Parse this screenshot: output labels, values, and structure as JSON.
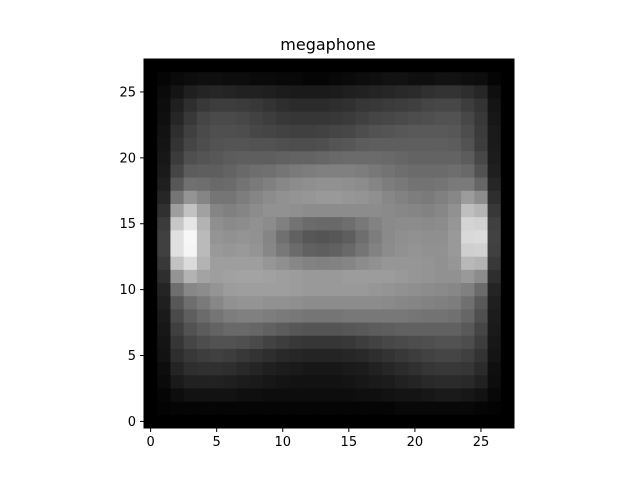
{
  "chart_data": {
    "type": "heatmap",
    "title": "megaphone",
    "xlabel": "",
    "ylabel": "",
    "colormap": "gray",
    "value_range": [
      0,
      1
    ],
    "grid": false,
    "legend": "none",
    "xlim": [
      -0.5,
      27.5
    ],
    "ylim": [
      27.5,
      -0.5
    ],
    "x_ticks": [
      0,
      5,
      10,
      15,
      20,
      25
    ],
    "x_tick_labels": [
      "0",
      "5",
      "10",
      "15",
      "20",
      "25"
    ],
    "y_ticks": [
      0,
      5,
      10,
      15,
      20,
      25
    ],
    "y_tick_labels": [
      "0",
      "5",
      "10",
      "15",
      "20",
      "25"
    ],
    "rows": 28,
    "cols": 28,
    "values": [
      [
        0.0,
        0.0,
        0.0,
        0.0,
        0.0,
        0.0,
        0.0,
        0.0,
        0.0,
        0.0,
        0.0,
        0.0,
        0.0,
        0.0,
        0.0,
        0.0,
        0.0,
        0.0,
        0.0,
        0.0,
        0.0,
        0.0,
        0.0,
        0.0,
        0.0,
        0.0,
        0.0,
        0.0
      ],
      [
        0.0,
        0.02,
        0.04,
        0.05,
        0.06,
        0.06,
        0.05,
        0.05,
        0.04,
        0.04,
        0.03,
        0.03,
        0.02,
        0.02,
        0.03,
        0.04,
        0.05,
        0.06,
        0.07,
        0.07,
        0.06,
        0.06,
        0.07,
        0.07,
        0.06,
        0.05,
        0.02,
        0.0
      ],
      [
        0.0,
        0.04,
        0.08,
        0.12,
        0.14,
        0.15,
        0.14,
        0.13,
        0.13,
        0.12,
        0.11,
        0.1,
        0.1,
        0.1,
        0.11,
        0.12,
        0.13,
        0.14,
        0.15,
        0.16,
        0.17,
        0.19,
        0.2,
        0.2,
        0.18,
        0.15,
        0.06,
        0.0
      ],
      [
        0.0,
        0.05,
        0.12,
        0.18,
        0.22,
        0.24,
        0.24,
        0.23,
        0.22,
        0.2,
        0.18,
        0.17,
        0.17,
        0.17,
        0.18,
        0.19,
        0.21,
        0.22,
        0.23,
        0.24,
        0.25,
        0.27,
        0.28,
        0.28,
        0.24,
        0.2,
        0.08,
        0.0
      ],
      [
        0.0,
        0.06,
        0.15,
        0.22,
        0.27,
        0.29,
        0.29,
        0.28,
        0.26,
        0.24,
        0.22,
        0.21,
        0.21,
        0.21,
        0.22,
        0.23,
        0.25,
        0.27,
        0.28,
        0.29,
        0.3,
        0.31,
        0.32,
        0.32,
        0.28,
        0.22,
        0.09,
        0.0
      ],
      [
        0.0,
        0.07,
        0.18,
        0.25,
        0.29,
        0.31,
        0.31,
        0.3,
        0.28,
        0.27,
        0.26,
        0.25,
        0.25,
        0.26,
        0.27,
        0.28,
        0.3,
        0.32,
        0.33,
        0.34,
        0.35,
        0.35,
        0.35,
        0.34,
        0.3,
        0.23,
        0.1,
        0.0
      ],
      [
        0.0,
        0.08,
        0.2,
        0.27,
        0.3,
        0.32,
        0.33,
        0.33,
        0.32,
        0.32,
        0.31,
        0.3,
        0.3,
        0.31,
        0.33,
        0.34,
        0.36,
        0.37,
        0.37,
        0.37,
        0.37,
        0.37,
        0.37,
        0.36,
        0.32,
        0.24,
        0.1,
        0.0
      ],
      [
        0.0,
        0.09,
        0.23,
        0.31,
        0.33,
        0.34,
        0.36,
        0.37,
        0.37,
        0.37,
        0.38,
        0.39,
        0.39,
        0.4,
        0.41,
        0.42,
        0.42,
        0.42,
        0.41,
        0.4,
        0.39,
        0.39,
        0.39,
        0.39,
        0.36,
        0.28,
        0.11,
        0.0
      ],
      [
        0.0,
        0.1,
        0.27,
        0.36,
        0.37,
        0.37,
        0.39,
        0.41,
        0.43,
        0.44,
        0.46,
        0.48,
        0.49,
        0.5,
        0.5,
        0.5,
        0.49,
        0.47,
        0.45,
        0.43,
        0.42,
        0.42,
        0.42,
        0.43,
        0.41,
        0.32,
        0.12,
        0.0
      ],
      [
        0.0,
        0.12,
        0.34,
        0.44,
        0.43,
        0.41,
        0.42,
        0.45,
        0.48,
        0.5,
        0.53,
        0.55,
        0.56,
        0.57,
        0.57,
        0.56,
        0.55,
        0.52,
        0.49,
        0.47,
        0.45,
        0.45,
        0.46,
        0.48,
        0.48,
        0.4,
        0.15,
        0.0
      ],
      [
        0.0,
        0.15,
        0.46,
        0.58,
        0.52,
        0.46,
        0.46,
        0.49,
        0.52,
        0.55,
        0.57,
        0.58,
        0.59,
        0.6,
        0.6,
        0.59,
        0.58,
        0.56,
        0.53,
        0.51,
        0.49,
        0.48,
        0.5,
        0.53,
        0.61,
        0.55,
        0.18,
        0.0
      ],
      [
        0.0,
        0.19,
        0.62,
        0.76,
        0.63,
        0.52,
        0.5,
        0.52,
        0.55,
        0.57,
        0.57,
        0.56,
        0.55,
        0.55,
        0.55,
        0.55,
        0.55,
        0.55,
        0.54,
        0.53,
        0.52,
        0.51,
        0.53,
        0.57,
        0.75,
        0.71,
        0.22,
        0.0
      ],
      [
        0.0,
        0.23,
        0.78,
        0.9,
        0.7,
        0.56,
        0.54,
        0.55,
        0.57,
        0.55,
        0.5,
        0.45,
        0.42,
        0.41,
        0.41,
        0.43,
        0.47,
        0.51,
        0.54,
        0.55,
        0.55,
        0.54,
        0.55,
        0.59,
        0.83,
        0.82,
        0.25,
        0.0
      ],
      [
        0.0,
        0.25,
        0.88,
        0.97,
        0.73,
        0.58,
        0.57,
        0.58,
        0.57,
        0.52,
        0.44,
        0.38,
        0.34,
        0.33,
        0.34,
        0.37,
        0.43,
        0.49,
        0.54,
        0.56,
        0.57,
        0.56,
        0.56,
        0.6,
        0.85,
        0.86,
        0.26,
        0.0
      ],
      [
        0.0,
        0.25,
        0.88,
        0.96,
        0.73,
        0.6,
        0.59,
        0.6,
        0.58,
        0.53,
        0.47,
        0.42,
        0.38,
        0.37,
        0.38,
        0.41,
        0.46,
        0.51,
        0.55,
        0.57,
        0.58,
        0.57,
        0.57,
        0.6,
        0.81,
        0.82,
        0.25,
        0.0
      ],
      [
        0.0,
        0.22,
        0.76,
        0.86,
        0.7,
        0.62,
        0.62,
        0.62,
        0.62,
        0.59,
        0.56,
        0.53,
        0.51,
        0.5,
        0.51,
        0.52,
        0.55,
        0.57,
        0.59,
        0.59,
        0.59,
        0.58,
        0.57,
        0.59,
        0.72,
        0.7,
        0.22,
        0.0
      ],
      [
        0.0,
        0.18,
        0.58,
        0.7,
        0.64,
        0.62,
        0.63,
        0.64,
        0.64,
        0.63,
        0.62,
        0.61,
        0.6,
        0.6,
        0.6,
        0.61,
        0.61,
        0.61,
        0.61,
        0.6,
        0.59,
        0.58,
        0.57,
        0.57,
        0.6,
        0.55,
        0.18,
        0.0
      ],
      [
        0.0,
        0.14,
        0.43,
        0.53,
        0.55,
        0.58,
        0.61,
        0.62,
        0.62,
        0.62,
        0.62,
        0.61,
        0.6,
        0.6,
        0.6,
        0.6,
        0.6,
        0.59,
        0.58,
        0.57,
        0.56,
        0.55,
        0.54,
        0.53,
        0.5,
        0.42,
        0.14,
        0.0
      ],
      [
        0.0,
        0.12,
        0.34,
        0.43,
        0.48,
        0.53,
        0.57,
        0.58,
        0.58,
        0.57,
        0.57,
        0.56,
        0.55,
        0.55,
        0.55,
        0.55,
        0.55,
        0.55,
        0.54,
        0.53,
        0.52,
        0.51,
        0.5,
        0.49,
        0.44,
        0.35,
        0.12,
        0.0
      ],
      [
        0.0,
        0.1,
        0.29,
        0.37,
        0.42,
        0.46,
        0.49,
        0.5,
        0.5,
        0.49,
        0.48,
        0.47,
        0.46,
        0.46,
        0.46,
        0.47,
        0.47,
        0.47,
        0.47,
        0.47,
        0.46,
        0.45,
        0.45,
        0.44,
        0.4,
        0.31,
        0.11,
        0.0
      ],
      [
        0.0,
        0.09,
        0.25,
        0.32,
        0.36,
        0.39,
        0.41,
        0.41,
        0.4,
        0.38,
        0.36,
        0.34,
        0.33,
        0.33,
        0.33,
        0.34,
        0.35,
        0.36,
        0.37,
        0.38,
        0.38,
        0.38,
        0.38,
        0.38,
        0.35,
        0.27,
        0.1,
        0.0
      ],
      [
        0.0,
        0.08,
        0.21,
        0.27,
        0.3,
        0.32,
        0.32,
        0.31,
        0.29,
        0.26,
        0.24,
        0.22,
        0.21,
        0.21,
        0.21,
        0.22,
        0.24,
        0.26,
        0.28,
        0.29,
        0.3,
        0.31,
        0.32,
        0.32,
        0.3,
        0.24,
        0.09,
        0.0
      ],
      [
        0.0,
        0.07,
        0.18,
        0.22,
        0.24,
        0.25,
        0.24,
        0.22,
        0.2,
        0.18,
        0.16,
        0.15,
        0.14,
        0.14,
        0.14,
        0.15,
        0.16,
        0.18,
        0.2,
        0.22,
        0.24,
        0.26,
        0.27,
        0.27,
        0.25,
        0.2,
        0.08,
        0.0
      ],
      [
        0.0,
        0.05,
        0.14,
        0.18,
        0.19,
        0.19,
        0.18,
        0.16,
        0.14,
        0.12,
        0.11,
        0.1,
        0.09,
        0.09,
        0.09,
        0.1,
        0.11,
        0.13,
        0.15,
        0.17,
        0.19,
        0.21,
        0.22,
        0.22,
        0.21,
        0.17,
        0.06,
        0.0
      ],
      [
        0.0,
        0.04,
        0.1,
        0.13,
        0.13,
        0.13,
        0.12,
        0.11,
        0.1,
        0.09,
        0.08,
        0.07,
        0.07,
        0.07,
        0.07,
        0.08,
        0.09,
        0.1,
        0.11,
        0.13,
        0.14,
        0.16,
        0.17,
        0.17,
        0.16,
        0.13,
        0.05,
        0.0
      ],
      [
        0.0,
        0.02,
        0.05,
        0.07,
        0.07,
        0.07,
        0.07,
        0.06,
        0.06,
        0.05,
        0.05,
        0.05,
        0.05,
        0.05,
        0.05,
        0.05,
        0.06,
        0.06,
        0.07,
        0.08,
        0.08,
        0.09,
        0.1,
        0.1,
        0.09,
        0.07,
        0.03,
        0.0
      ],
      [
        0.0,
        0.01,
        0.02,
        0.02,
        0.02,
        0.02,
        0.02,
        0.02,
        0.02,
        0.02,
        0.02,
        0.02,
        0.02,
        0.02,
        0.02,
        0.02,
        0.02,
        0.02,
        0.02,
        0.03,
        0.03,
        0.03,
        0.03,
        0.03,
        0.03,
        0.02,
        0.01,
        0.0
      ],
      [
        0.0,
        0.0,
        0.0,
        0.0,
        0.0,
        0.0,
        0.0,
        0.0,
        0.0,
        0.0,
        0.0,
        0.0,
        0.0,
        0.0,
        0.0,
        0.0,
        0.0,
        0.0,
        0.0,
        0.0,
        0.0,
        0.0,
        0.0,
        0.0,
        0.0,
        0.0,
        0.0,
        0.0
      ]
    ]
  }
}
